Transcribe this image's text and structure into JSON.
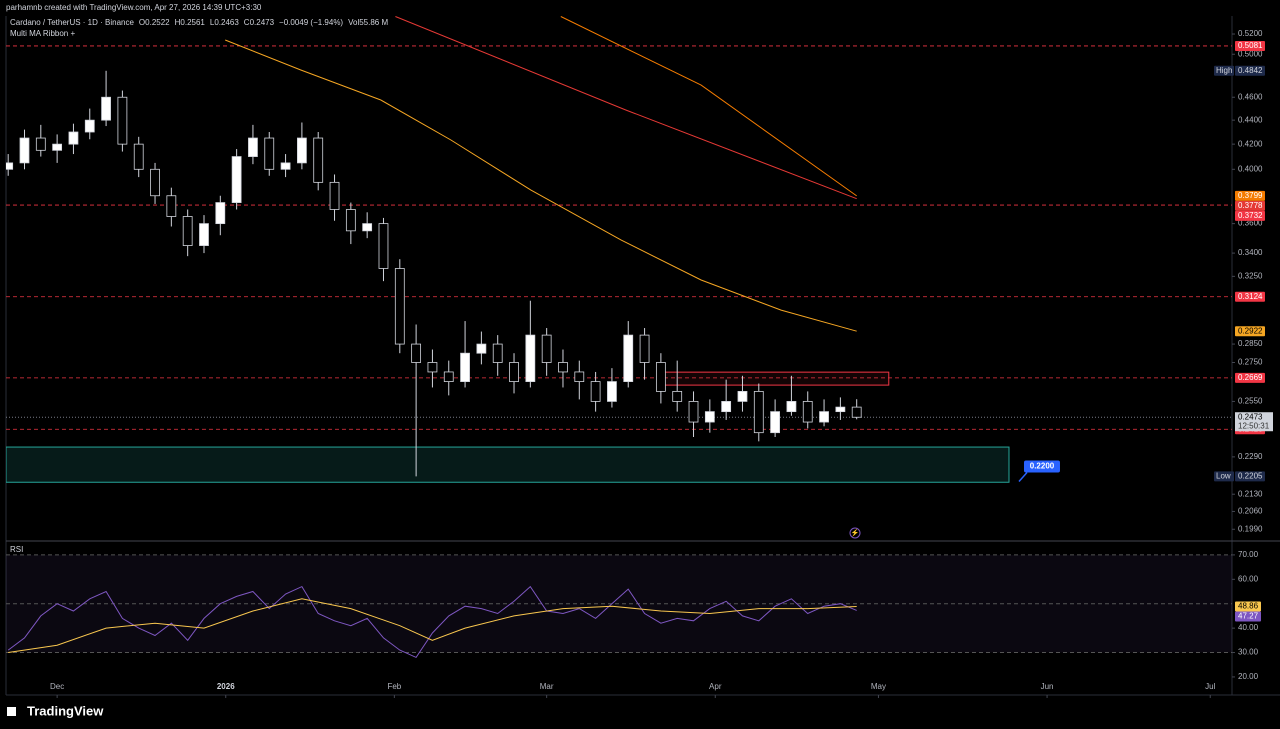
{
  "header": {
    "credit": "parhamnb created with TradingView.com, Apr 27, 2026 14:39 UTC+3:30",
    "symbol": "Cardano / TetherUS · 1D · Binance",
    "legend_values": [
      "O0.2522",
      "H0.2561",
      "L0.2463",
      "C0.2473",
      "−0.0049 (−1.94%)",
      "Vol55.86 M"
    ],
    "indicator": "Multi MA Ribbon +"
  },
  "footer": {
    "logo": "TradingView"
  },
  "chart_data": [
    {
      "type": "candlestick",
      "log_scale": true,
      "xlim": [
        -9.4,
        216
      ],
      "ylim": [
        0.1949,
        0.5385
      ],
      "x": [
        -9,
        -6,
        -3,
        0,
        3,
        6,
        9,
        12,
        15,
        18,
        21,
        24,
        27,
        30,
        33,
        36,
        39,
        42,
        45,
        48,
        51,
        54,
        57,
        60,
        63,
        66,
        69,
        72,
        75,
        78,
        81,
        84,
        87,
        90,
        93,
        96,
        99,
        102,
        105,
        108,
        111,
        114,
        117,
        120,
        123,
        126,
        129,
        132,
        135,
        138,
        141,
        144,
        147
      ],
      "open": [
        0.4,
        0.405,
        0.425,
        0.415,
        0.42,
        0.43,
        0.44,
        0.46,
        0.42,
        0.4,
        0.38,
        0.365,
        0.345,
        0.36,
        0.375,
        0.41,
        0.425,
        0.4,
        0.405,
        0.425,
        0.39,
        0.37,
        0.355,
        0.36,
        0.33,
        0.285,
        0.275,
        0.27,
        0.265,
        0.28,
        0.285,
        0.275,
        0.265,
        0.29,
        0.275,
        0.27,
        0.265,
        0.255,
        0.265,
        0.29,
        0.275,
        0.26,
        0.255,
        0.245,
        0.25,
        0.255,
        0.26,
        0.24,
        0.25,
        0.255,
        0.245,
        0.25,
        0.2522
      ],
      "high": [
        0.412,
        0.432,
        0.436,
        0.428,
        0.437,
        0.45,
        0.4842,
        0.466,
        0.426,
        0.405,
        0.386,
        0.37,
        0.366,
        0.38,
        0.416,
        0.436,
        0.43,
        0.412,
        0.438,
        0.43,
        0.396,
        0.375,
        0.368,
        0.364,
        0.336,
        0.296,
        0.282,
        0.276,
        0.298,
        0.292,
        0.29,
        0.28,
        0.31,
        0.294,
        0.282,
        0.276,
        0.27,
        0.272,
        0.298,
        0.294,
        0.28,
        0.276,
        0.26,
        0.256,
        0.266,
        0.268,
        0.264,
        0.256,
        0.268,
        0.26,
        0.256,
        0.257,
        0.2561
      ],
      "low": [
        0.395,
        0.4,
        0.41,
        0.405,
        0.412,
        0.424,
        0.435,
        0.414,
        0.394,
        0.374,
        0.358,
        0.338,
        0.34,
        0.352,
        0.37,
        0.404,
        0.395,
        0.394,
        0.4,
        0.384,
        0.362,
        0.346,
        0.35,
        0.322,
        0.28,
        0.2205,
        0.262,
        0.258,
        0.262,
        0.274,
        0.268,
        0.259,
        0.262,
        0.268,
        0.262,
        0.256,
        0.25,
        0.252,
        0.262,
        0.266,
        0.254,
        0.25,
        0.238,
        0.24,
        0.246,
        0.25,
        0.236,
        0.238,
        0.248,
        0.242,
        0.243,
        0.246,
        0.2463
      ],
      "close": [
        0.405,
        0.425,
        0.415,
        0.42,
        0.43,
        0.44,
        0.46,
        0.42,
        0.4,
        0.38,
        0.365,
        0.345,
        0.36,
        0.375,
        0.41,
        0.425,
        0.4,
        0.405,
        0.425,
        0.39,
        0.37,
        0.355,
        0.36,
        0.33,
        0.285,
        0.275,
        0.27,
        0.265,
        0.28,
        0.285,
        0.275,
        0.265,
        0.29,
        0.275,
        0.27,
        0.265,
        0.255,
        0.265,
        0.29,
        0.275,
        0.26,
        0.255,
        0.245,
        0.25,
        0.255,
        0.26,
        0.24,
        0.25,
        0.255,
        0.245,
        0.25,
        0.2522,
        0.2473
      ],
      "up_color": "#ffffff",
      "down_color": "#000000",
      "wick_color": "#d1d4dc",
      "countdown": "12:50:31",
      "yticks": [
        {
          "value": 0.52,
          "label": "0.5200"
        },
        {
          "value": 0.5,
          "label": "0.5000"
        },
        {
          "value": 0.46,
          "label": "0.4600"
        },
        {
          "value": 0.44,
          "label": "0.4400"
        },
        {
          "value": 0.42,
          "label": "0.4200"
        },
        {
          "value": 0.4,
          "label": "0.4000"
        },
        {
          "value": 0.36,
          "label": "0.3600"
        },
        {
          "value": 0.34,
          "label": "0.3400"
        },
        {
          "value": 0.325,
          "label": "0.3250"
        },
        {
          "value": 0.285,
          "label": "0.2850"
        },
        {
          "value": 0.275,
          "label": "0.2750"
        },
        {
          "value": 0.255,
          "label": "0.2550"
        },
        {
          "value": 0.229,
          "label": "0.2290"
        },
        {
          "value": 0.213,
          "label": "0.2130"
        },
        {
          "value": 0.206,
          "label": "0.2060"
        },
        {
          "value": 0.199,
          "label": "0.1990"
        }
      ],
      "overlays": [
        {
          "color": "#f5a623",
          "x": [
            30.9,
            44.8,
            59.5,
            72.4,
            87.1,
            103.7,
            118.4,
            133.1,
            147
          ],
          "values": [
            0.514,
            0.485,
            0.4575,
            0.4234,
            0.3842,
            0.3487,
            0.3227,
            0.3044,
            0.2922
          ]
        },
        {
          "color": "#e53935",
          "x": [
            62.2,
            104.6,
            147
          ],
          "values": [
            0.538,
            0.4487,
            0.3778
          ]
        },
        {
          "color": "#f57c00",
          "x": [
            92.6,
            118.4,
            147
          ],
          "values": [
            0.538,
            0.471,
            0.3799
          ]
        }
      ],
      "levels": [
        {
          "value": 0.5081,
          "color": "#f23645"
        },
        {
          "value": 0.3732,
          "color": "#f23645"
        },
        {
          "value": 0.3124,
          "color": "#f23645"
        },
        {
          "value": 0.2669,
          "color": "#f23645"
        },
        {
          "value": 0.2416,
          "color": "#f23645"
        }
      ],
      "extremes": [
        {
          "tag": "High",
          "value": 0.4842
        },
        {
          "tag": "Low",
          "value": 0.2205
        }
      ],
      "zones": [
        {
          "x": [
            -9.4,
            175
          ],
          "y": [
            0.218,
            0.2334
          ],
          "fill": "rgba(38,166,154,0.16)",
          "stroke": "#26a69a"
        },
        {
          "x": [
            110.9,
            152.9
          ],
          "y": [
            0.2632,
            0.2699
          ],
          "fill": "rgba(242,54,69,0.08)",
          "stroke": "#f23645"
        }
      ],
      "callout": {
        "value": 0.22,
        "label": "0.2200",
        "color": "#2962ff"
      }
    },
    {
      "type": "line",
      "title": "RSI",
      "xlim": [
        -9.4,
        216
      ],
      "ylim": [
        12.6,
        75.7
      ],
      "yticks": [
        {
          "value": 70,
          "label": "70.00"
        },
        {
          "value": 60,
          "label": "60.00"
        },
        {
          "value": 40,
          "label": "40.00"
        },
        {
          "value": 30,
          "label": "30.00"
        },
        {
          "value": 20,
          "label": "20.00"
        }
      ],
      "hlines": [
        70,
        50,
        30
      ],
      "xticks": [
        {
          "value": 0,
          "label": "Dec"
        },
        {
          "value": 31,
          "label": "2026"
        },
        {
          "value": 62,
          "label": "Feb"
        },
        {
          "value": 90,
          "label": "Mar"
        },
        {
          "value": 121,
          "label": "Apr"
        },
        {
          "value": 151,
          "label": "May"
        },
        {
          "value": 182,
          "label": "Jun"
        },
        {
          "value": 212,
          "label": "Jul"
        }
      ],
      "series": [
        {
          "color": "#7e57c2",
          "text_color": "#ffffff",
          "x": [
            -9,
            -6,
            -3,
            0,
            3,
            6,
            9,
            12,
            15,
            18,
            21,
            24,
            27,
            30,
            33,
            36,
            39,
            42,
            45,
            48,
            51,
            54,
            57,
            60,
            63,
            66,
            69,
            72,
            75,
            78,
            81,
            84,
            87,
            90,
            93,
            96,
            99,
            102,
            105,
            108,
            111,
            114,
            117,
            120,
            123,
            126,
            129,
            132,
            135,
            138,
            141,
            144,
            147
          ],
          "values": [
            31,
            36,
            45,
            50,
            47,
            52,
            55,
            44,
            40,
            37,
            42,
            35,
            44,
            50,
            53,
            55,
            48,
            54,
            57,
            46,
            43,
            41,
            44,
            36,
            31,
            28,
            38,
            45,
            49,
            48,
            46,
            51,
            57,
            47,
            46,
            48,
            44,
            50,
            56,
            46,
            42,
            44,
            43,
            48,
            51,
            45,
            43,
            49,
            52,
            46,
            49,
            50,
            47.27
          ]
        },
        {
          "color": "#f9c74f",
          "text_color": "#000000",
          "x": [
            -9,
            0,
            9,
            18,
            27,
            36,
            45,
            54,
            63,
            69,
            75,
            84,
            93,
            102,
            111,
            120,
            129,
            138,
            147
          ],
          "values": [
            30,
            33,
            40,
            42,
            40,
            47,
            52,
            48,
            41,
            35,
            40,
            45,
            48,
            49,
            47,
            46,
            48,
            48,
            48.86
          ]
        }
      ]
    }
  ]
}
